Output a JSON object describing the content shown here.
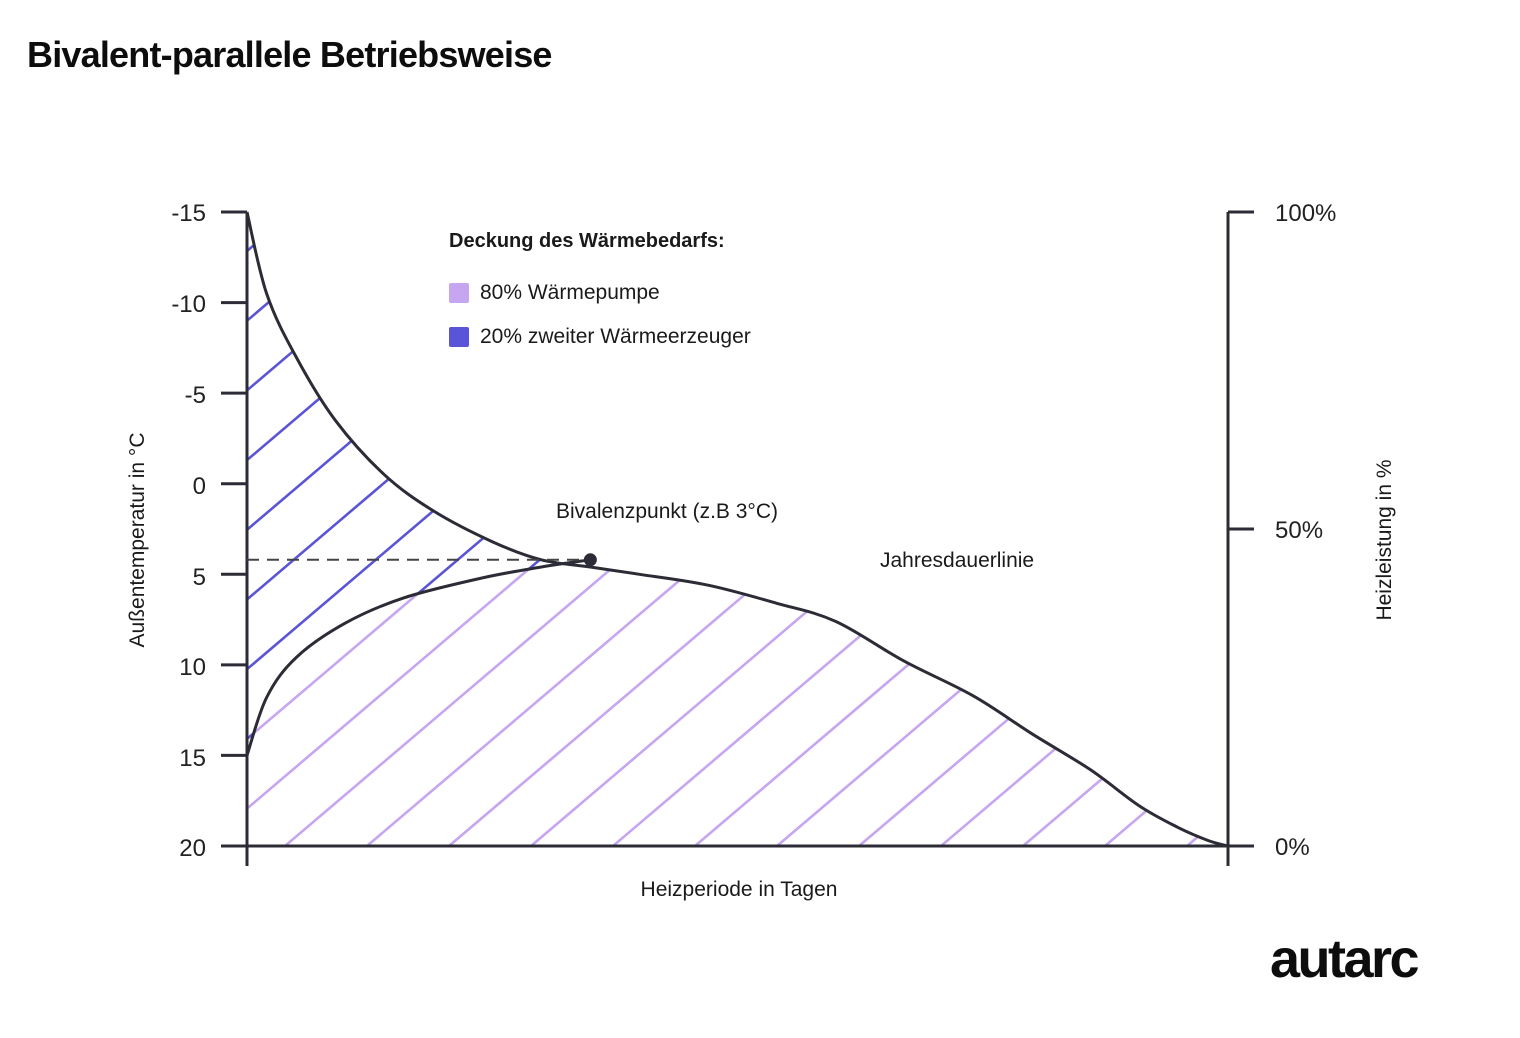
{
  "title": "Bivalent-parallele Betriebsweise",
  "logo": "autarc",
  "colors": {
    "heat_pump": "#c6a6f0",
    "second_generator": "#5a55d6",
    "axis": "#2c2c36",
    "curve": "#2c2c36"
  },
  "chart_data": {
    "type": "area",
    "xlabel": "Heizperiode in Tagen",
    "ylabel_left": "Außentemperatur in °C",
    "ylabel_right": "Heizleistung in %",
    "y_left_ticks": [
      "-15",
      "-10",
      "-5",
      "0",
      "5",
      "10",
      "15",
      "20"
    ],
    "y_left_values": [
      -15,
      -10,
      -5,
      0,
      5,
      10,
      15,
      20
    ],
    "y_left_range": [
      -15,
      20
    ],
    "y_left_inverted": true,
    "y_right_ticks": [
      "100%",
      "50%",
      "0%"
    ],
    "y_right_values": [
      100,
      50,
      0
    ],
    "x_range": [
      0,
      1
    ],
    "x_ticks_labeled": false,
    "grid": false,
    "legend": {
      "title": "Deckung des Wärmebedarfs:",
      "position": "top-center",
      "items": [
        {
          "label": "80% Wärmepumpe",
          "color": "#c6a6f0"
        },
        {
          "label": "20% zweiter Wärmeerzeuger",
          "color": "#5a55d6"
        }
      ]
    },
    "series": [
      {
        "name": "Jahresdauerlinie",
        "x": [
          0,
          0.02,
          0.05,
          0.09,
          0.14,
          0.19,
          0.25,
          0.3,
          0.35,
          0.4,
          0.47,
          0.54,
          0.6,
          0.67,
          0.74,
          0.8,
          0.86,
          0.91,
          0.95,
          0.98,
          1.0
        ],
        "y": [
          -15,
          -10.5,
          -7,
          -3.5,
          -0.5,
          1.5,
          3.2,
          4.2,
          4.6,
          5.0,
          5.6,
          6.6,
          7.6,
          9.8,
          11.7,
          13.8,
          15.8,
          17.8,
          19.0,
          19.7,
          20
        ]
      },
      {
        "name": "heat-pump-boundary",
        "x": [
          0,
          0.02,
          0.05,
          0.1,
          0.16,
          0.24,
          0.3,
          0.35
        ],
        "y": [
          15,
          11.8,
          9.6,
          7.7,
          6.3,
          5.2,
          4.6,
          4.2
        ]
      }
    ],
    "annotations": [
      {
        "label": "Bivalenzpunkt (z.B 3°C)",
        "x": 0.35,
        "y": 4.2
      },
      {
        "label": "Jahresdauerlinie",
        "x": 0.72,
        "y": 4.2
      }
    ]
  }
}
